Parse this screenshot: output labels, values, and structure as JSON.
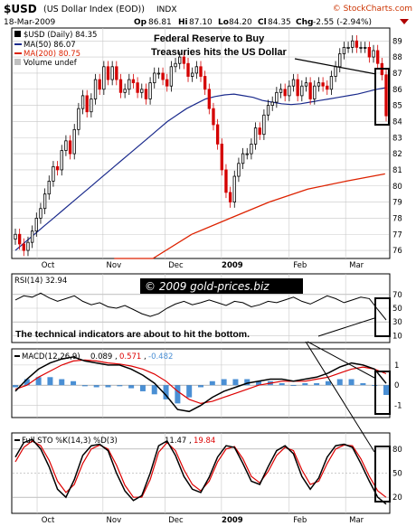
{
  "header": {
    "symbol": "$USD",
    "name": "(US Dollar Index (EOD))",
    "exchange": "INDX",
    "brand": "© StockCharts.com",
    "date": "18-Mar-2009",
    "quote": {
      "open_label": "Op",
      "open": "86.81",
      "high_label": "Hi",
      "high": "87.10",
      "low_label": "Lo",
      "low": "84.20",
      "close_label": "Cl",
      "close": "84.35",
      "change_label": "Chg",
      "change": "-2.55 (-2.94%)"
    }
  },
  "legend": {
    "price": "$USD (Daily) 84.35",
    "ma50": "MA(50) 86.07",
    "ma200": "MA(200) 80.75",
    "volume": "Volume undef"
  },
  "annotations": {
    "headline_1": "Federal Reserve to Buy",
    "headline_2": "Treasuries hits the US Dollar",
    "watermark": "© 2009 gold-prices.biz",
    "indicator_note": "The technical indicators are about to hit the bottom."
  },
  "panels": {
    "rsi_label": "RSI(14) 32.94",
    "macd_label_a": "MACD(12,26,9)",
    "macd_value": "0.089",
    "macd_signal": "0.571",
    "macd_hist": "-0.482",
    "sto_label_a": "Full STO %K(14,3) %D(3)",
    "sto_k": "11.47",
    "sto_d": "19.84"
  },
  "colors": {
    "up": "#000000",
    "down": "#d40000",
    "ma50": "#1a2a8c",
    "ma200": "#dd2200",
    "hist": "#4a8fd4",
    "grid": "#c8c8c8",
    "title_blue": "#000080"
  },
  "chart_data": [
    {
      "type": "candlestick",
      "title": "$USD (Daily) 84.35",
      "x_ticks": [
        "Oct",
        "Nov",
        "Dec",
        "2009",
        "Feb",
        "Mar"
      ],
      "y_ticks": [
        76,
        77,
        78,
        79,
        80,
        81,
        82,
        83,
        84,
        85,
        86,
        87,
        88,
        89
      ],
      "ylim": [
        75.5,
        89.8
      ],
      "grid": true,
      "close": [
        77.0,
        76.4,
        76.0,
        76.5,
        77.2,
        78.0,
        78.6,
        79.5,
        80.3,
        81.2,
        81.0,
        82.2,
        82.8,
        82.0,
        83.5,
        84.8,
        85.6,
        84.6,
        85.4,
        86.6,
        86.0,
        87.4,
        86.6,
        87.4,
        86.6,
        85.8,
        86.0,
        86.6,
        86.4,
        85.8,
        86.0,
        85.4,
        86.4,
        87.0,
        87.0,
        86.6,
        86.2,
        87.4,
        87.6,
        88.0,
        87.6,
        86.8,
        87.0,
        87.4,
        86.8,
        86.0,
        84.8,
        83.8,
        82.6,
        81.0,
        79.6,
        79.0,
        80.6,
        81.4,
        82.0,
        82.0,
        82.6,
        83.6,
        83.2,
        84.4,
        85.0,
        85.2,
        85.8,
        86.0,
        85.6,
        86.2,
        86.6,
        85.6,
        86.2,
        86.4,
        85.4,
        86.2,
        86.4,
        86.2,
        86.0,
        86.8,
        87.4,
        88.2,
        88.6,
        88.6,
        89.0,
        88.6,
        88.6,
        88.6,
        88.0,
        88.4,
        87.6,
        86.9,
        84.35
      ],
      "ma50": [
        76.0,
        76.5,
        77.0,
        77.5,
        78.0,
        78.5,
        79.0,
        79.5,
        80.0,
        80.5,
        81.0,
        81.5,
        82.0,
        82.5,
        83.0,
        83.5,
        84.0,
        84.4,
        84.8,
        85.1,
        85.4,
        85.55,
        85.65,
        85.7,
        85.6,
        85.5,
        85.3,
        85.2,
        85.1,
        85.05,
        85.1,
        85.2,
        85.3,
        85.4,
        85.5,
        85.6,
        85.7,
        85.85,
        86.0,
        86.1
      ],
      "ma200": [
        70.0,
        75.0,
        77.0,
        78.0,
        79.0,
        79.8,
        80.3,
        80.75
      ]
    },
    {
      "type": "line",
      "title": "RSI(14) 32.94",
      "y_ticks": [
        10,
        30,
        50,
        70
      ],
      "ylim": [
        0,
        100
      ],
      "values": [
        62,
        68,
        66,
        72,
        65,
        60,
        64,
        68,
        60,
        55,
        58,
        52,
        50,
        54,
        48,
        42,
        38,
        42,
        50,
        56,
        60,
        55,
        58,
        62,
        58,
        54,
        60,
        58,
        52,
        55,
        60,
        58,
        62,
        66,
        60,
        56,
        62,
        68,
        64,
        58,
        62,
        66,
        64,
        48,
        32.94
      ]
    },
    {
      "type": "line",
      "title": "MACD(12,26,9) 0.089, 0.571, -0.482",
      "y_ticks": [
        -1,
        0,
        1
      ],
      "ylim": [
        -1.6,
        1.8
      ],
      "series": [
        {
          "name": "MACD",
          "values": [
            -0.3,
            0.3,
            0.8,
            1.1,
            1.3,
            1.4,
            1.2,
            1.1,
            1.0,
            1.0,
            0.8,
            0.5,
            0.1,
            -0.5,
            -1.2,
            -1.3,
            -1.0,
            -0.6,
            -0.3,
            -0.1,
            0.1,
            0.2,
            0.3,
            0.3,
            0.2,
            0.3,
            0.4,
            0.6,
            0.9,
            1.1,
            1.0,
            0.8,
            0.089
          ]
        },
        {
          "name": "Signal",
          "values": [
            -0.2,
            0.0,
            0.4,
            0.7,
            1.0,
            1.2,
            1.25,
            1.2,
            1.1,
            1.05,
            0.95,
            0.8,
            0.55,
            0.2,
            -0.3,
            -0.7,
            -0.9,
            -0.8,
            -0.6,
            -0.4,
            -0.2,
            0.0,
            0.1,
            0.2,
            0.2,
            0.2,
            0.3,
            0.4,
            0.6,
            0.8,
            0.9,
            0.8,
            0.571
          ]
        }
      ]
    },
    {
      "type": "line",
      "title": "Full STO %K(14,3) %D(3) 11.47, 19.84",
      "y_ticks": [
        20,
        50,
        80
      ],
      "ylim": [
        0,
        100
      ],
      "series": [
        {
          "name": "%K",
          "values": [
            70,
            88,
            92,
            80,
            58,
            30,
            20,
            42,
            72,
            84,
            86,
            78,
            50,
            28,
            16,
            22,
            50,
            84,
            90,
            72,
            46,
            30,
            26,
            45,
            70,
            84,
            82,
            62,
            40,
            36,
            58,
            78,
            84,
            74,
            46,
            30,
            44,
            70,
            84,
            86,
            82,
            62,
            40,
            20,
            11.47
          ]
        },
        {
          "name": "%D",
          "values": [
            64,
            82,
            90,
            84,
            66,
            40,
            26,
            36,
            62,
            80,
            85,
            80,
            60,
            35,
            20,
            20,
            42,
            76,
            88,
            78,
            54,
            36,
            28,
            40,
            64,
            80,
            83,
            68,
            46,
            38,
            52,
            72,
            82,
            78,
            54,
            36,
            40,
            62,
            80,
            85,
            84,
            68,
            46,
            28,
            19.84
          ]
        }
      ]
    }
  ]
}
